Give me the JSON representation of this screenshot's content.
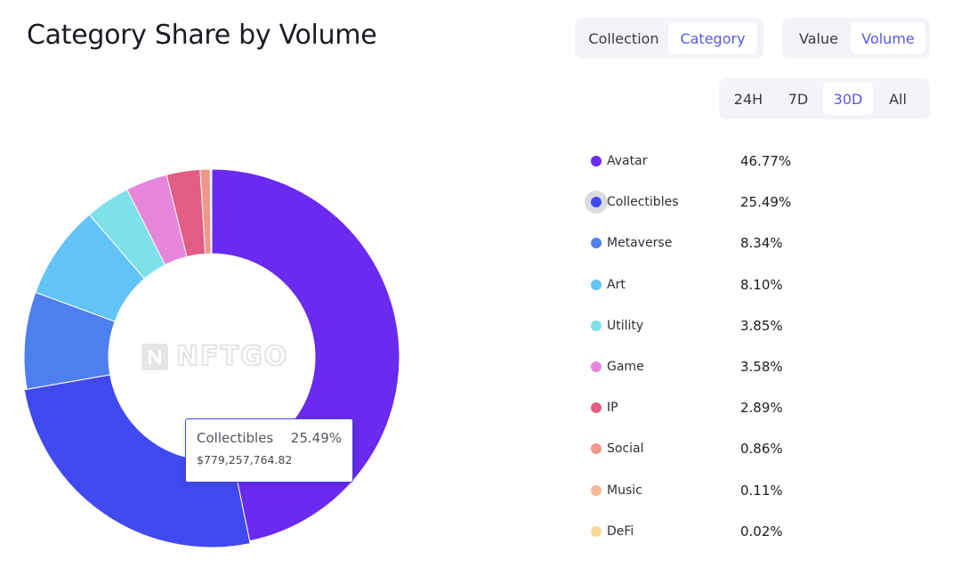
{
  "title": "Category Share by Volume",
  "toggles": {
    "view": {
      "options": [
        "Collection",
        "Category"
      ],
      "selected": "Category"
    },
    "metric": {
      "options": [
        "Value",
        "Volume"
      ],
      "selected": "Volume"
    },
    "range": {
      "options": [
        "24H",
        "7D",
        "30D",
        "All"
      ],
      "selected": "30D"
    }
  },
  "watermark": "NFTGO",
  "tooltip": {
    "category": "Collectibles",
    "percent": "25.49%",
    "value": "$779,257,764.82"
  },
  "colors": {
    "accent": "#5b57e6",
    "tooltip_border": "#4949e6"
  },
  "chart_data": {
    "type": "pie",
    "donut": true,
    "title": "Category Share by Volume",
    "highlighted": "Collectibles",
    "legend_position": "right",
    "slices": [
      {
        "name": "Avatar",
        "label": "46.77%",
        "value": 46.77,
        "color": "#6a2af0"
      },
      {
        "name": "Collectibles",
        "label": "25.49%",
        "value": 25.49,
        "color": "#4149f0"
      },
      {
        "name": "Metaverse",
        "label": "8.34%",
        "value": 8.34,
        "color": "#4e7fee"
      },
      {
        "name": "Art",
        "label": "8.10%",
        "value": 8.1,
        "color": "#62c3f6"
      },
      {
        "name": "Utility",
        "label": "3.85%",
        "value": 3.85,
        "color": "#7ee0ea"
      },
      {
        "name": "Game",
        "label": "3.58%",
        "value": 3.58,
        "color": "#e685dc"
      },
      {
        "name": "IP",
        "label": "2.89%",
        "value": 2.89,
        "color": "#e35c83"
      },
      {
        "name": "Social",
        "label": "0.86%",
        "value": 0.86,
        "color": "#f0968a"
      },
      {
        "name": "Music",
        "label": "0.11%",
        "value": 0.11,
        "color": "#f5b896"
      },
      {
        "name": "DeFi",
        "label": "0.02%",
        "value": 0.02,
        "color": "#f7d89a"
      }
    ]
  }
}
